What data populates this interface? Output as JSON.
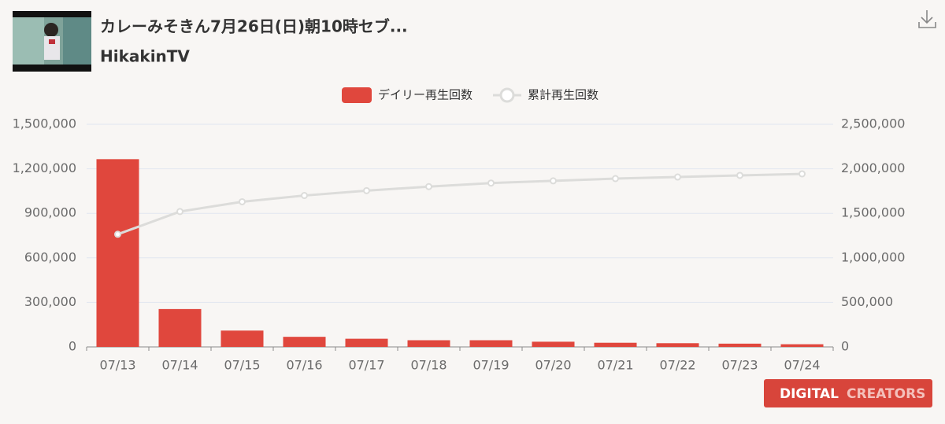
{
  "header": {
    "title": "カレーみそきん7月26日(日)朝10時セブ...",
    "channel": "HikakinTV"
  },
  "logo": {
    "left": "DIGITAL",
    "right": "CREATORS"
  },
  "chart_data": {
    "type": "bar-line",
    "categories": [
      "07/13",
      "07/14",
      "07/15",
      "07/16",
      "07/17",
      "07/18",
      "07/19",
      "07/20",
      "07/21",
      "07/22",
      "07/23",
      "07/24"
    ],
    "series": [
      {
        "name": "デイリー再生回数",
        "type": "bar",
        "axis": "y",
        "color": "#e0473d",
        "values": [
          1265000,
          255000,
          110000,
          68000,
          55000,
          45000,
          45000,
          35000,
          28000,
          25000,
          22000,
          18000
        ]
      },
      {
        "name": "累計再生回数",
        "type": "line",
        "axis": "y2",
        "color": "#dcdcda",
        "values": [
          1265000,
          1520000,
          1630000,
          1700000,
          1755000,
          1800000,
          1840000,
          1865000,
          1890000,
          1908000,
          1926000,
          1943000
        ]
      }
    ],
    "ylim": [
      0,
      1500000
    ],
    "yticks": [
      0,
      {
        "value": 300000,
        "label": "300,000"
      },
      {
        "value": 600000,
        "label": "600,000"
      },
      {
        "value": 900000,
        "label": "900,000"
      },
      {
        "value": 1200000,
        "label": "1,200,000"
      },
      {
        "value": 1500000,
        "label": "1,500,000"
      }
    ],
    "y2lim": [
      0,
      2500000
    ],
    "y2ticks": [
      0,
      {
        "value": 500000,
        "label": "500,000"
      },
      {
        "value": 1000000,
        "label": "1,000,000"
      },
      {
        "value": 1500000,
        "label": "1,500,000"
      },
      {
        "value": 2000000,
        "label": "2,000,000"
      },
      {
        "value": 2500000,
        "label": "2,500,000"
      }
    ],
    "grid": true,
    "legend": "top"
  }
}
